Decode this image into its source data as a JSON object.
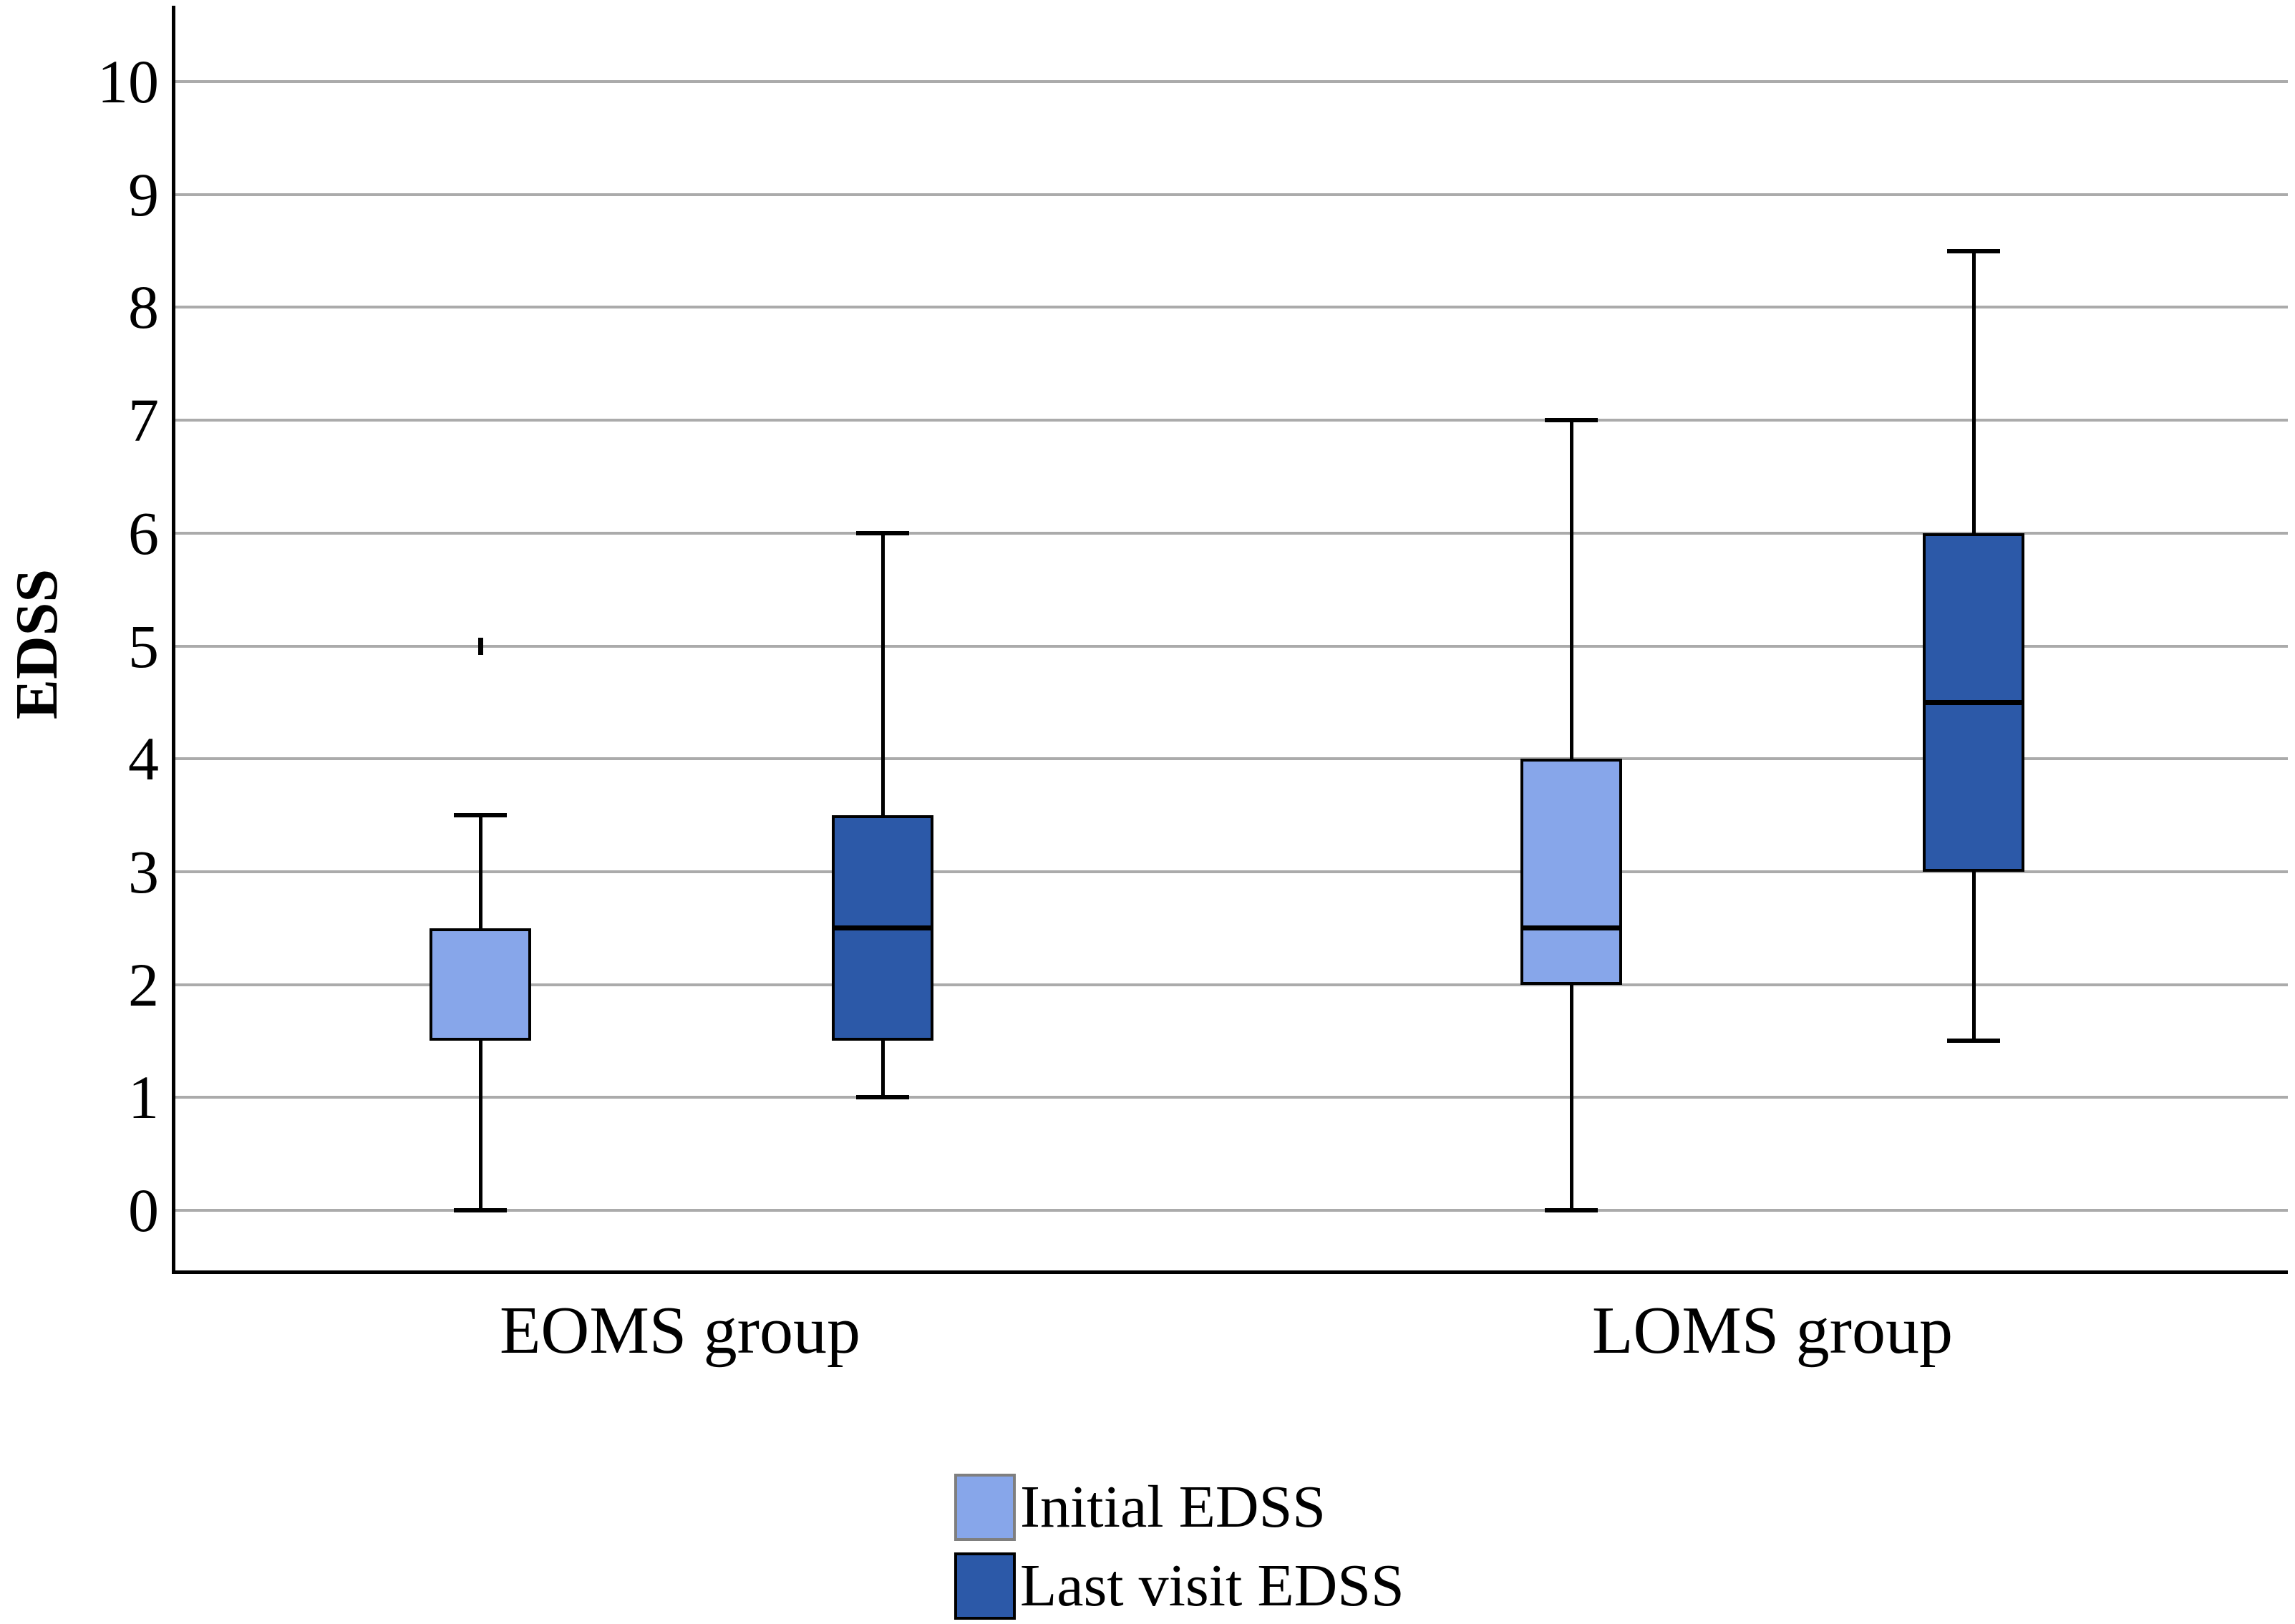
{
  "chart_data": {
    "type": "boxplot",
    "ylabel": "EDSS",
    "yticks": [
      0,
      1,
      2,
      3,
      4,
      5,
      6,
      7,
      8,
      9,
      10
    ],
    "ylim": [
      0,
      10.6
    ],
    "grid": "horizontal-gray-lines-at-each-integer",
    "legend_position": "bottom-center",
    "categories": [
      "EOMS group",
      "LOMS group"
    ],
    "legend": [
      "Initial EDSS",
      "Last visit EDSS"
    ],
    "colors": {
      "initial_fill": "#87A6EA",
      "last_visit_fill": "#2C59A8",
      "gridline": "#ABABAB",
      "axis": "#000000",
      "legend_light_swatch_border": "#7F7F7F",
      "legend_dark_swatch_border": "#000000"
    },
    "series": [
      {
        "name": "Initial EDSS",
        "color": "#87A6EA",
        "boxes": [
          {
            "category": "EOMS group",
            "whisker_low": 0,
            "q1": 1.5,
            "median": 2.5,
            "q3": 2.5,
            "whisker_high": 3.5,
            "outliers": [
              5
            ]
          },
          {
            "category": "LOMS group",
            "whisker_low": 0,
            "q1": 2,
            "median": 2.5,
            "q3": 4,
            "whisker_high": 7,
            "outliers": []
          }
        ]
      },
      {
        "name": "Last visit EDSS",
        "color": "#2C59A8",
        "boxes": [
          {
            "category": "EOMS group",
            "whisker_low": 1,
            "q1": 1.5,
            "median": 2.5,
            "q3": 3.5,
            "whisker_high": 6,
            "outliers": []
          },
          {
            "category": "LOMS group",
            "whisker_low": 1.5,
            "q1": 3,
            "median": 4.5,
            "q3": 6,
            "whisker_high": 8.5,
            "outliers": []
          }
        ]
      }
    ]
  }
}
